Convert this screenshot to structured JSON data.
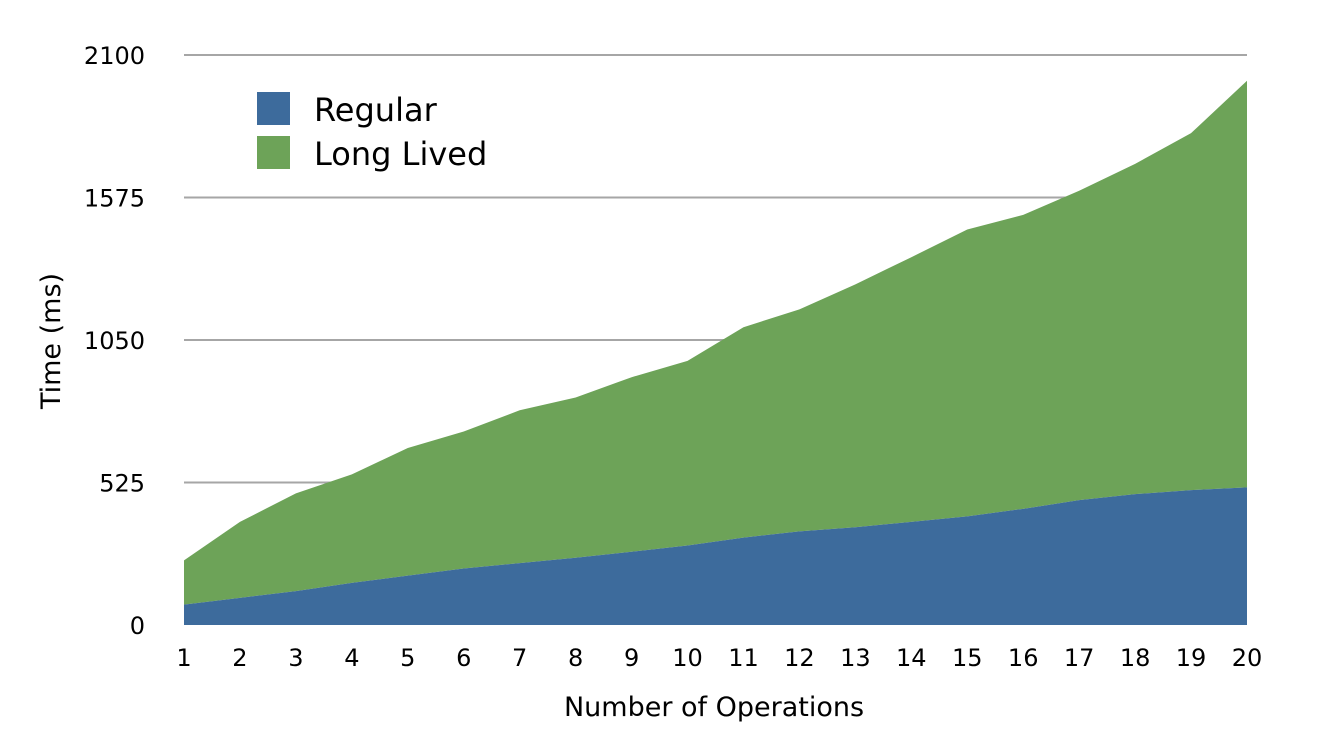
{
  "chart_data": {
    "type": "area",
    "stacked": true,
    "title": "",
    "xlabel": "Number of Operations",
    "ylabel": "Time (ms)",
    "x": [
      1,
      2,
      3,
      4,
      5,
      6,
      7,
      8,
      9,
      10,
      11,
      12,
      13,
      14,
      15,
      16,
      17,
      18,
      19,
      20
    ],
    "ylim": [
      0,
      2100
    ],
    "yticks": [
      "0",
      "525",
      "1050",
      "1575",
      "2100"
    ],
    "grid": true,
    "legend_position": "top-left",
    "series": [
      {
        "name": "Regular",
        "color": "#3d6b9c",
        "values": [
          75,
          100,
          125,
          155,
          182,
          208,
          228,
          248,
          270,
          293,
          322,
          345,
          360,
          380,
          400,
          428,
          460,
          482,
          497,
          507
        ]
      },
      {
        "name": "Long Lived",
        "color": "#6da358",
        "values": [
          163,
          280,
          360,
          400,
          470,
          505,
          563,
          590,
          643,
          680,
          775,
          818,
          895,
          975,
          1057,
          1083,
          1140,
          1217,
          1315,
          1498
        ]
      }
    ]
  }
}
